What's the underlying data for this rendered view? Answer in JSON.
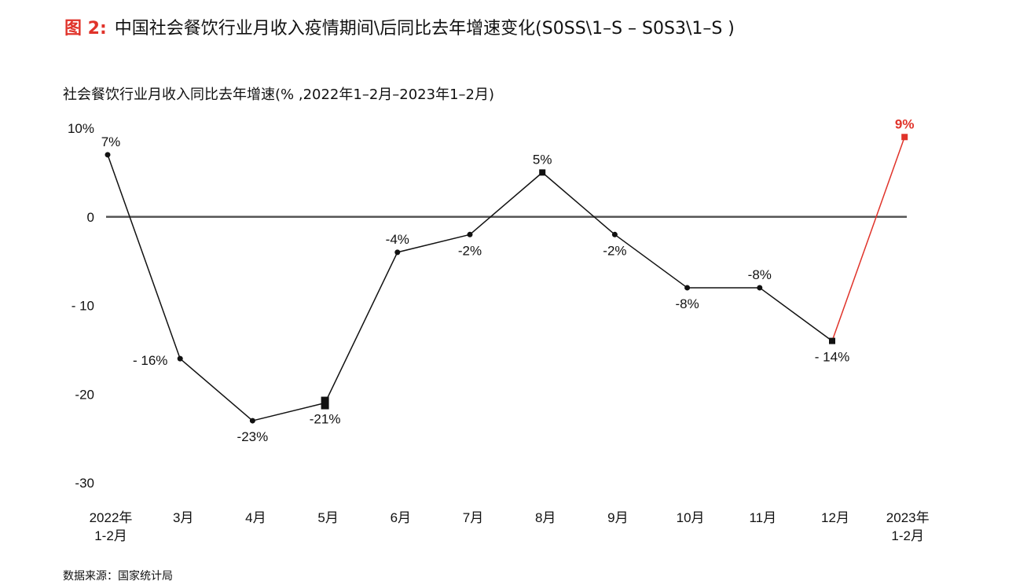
{
  "header": {
    "figure_label": "图 2:",
    "title": "中国社会餐饮行业月收入疫情期间\\后同比去年增速变化(S0SS\\1–S – S0S3\\1–S )"
  },
  "footer": {
    "source": "数据来源：国家统计局"
  },
  "colors": {
    "accent": "#e0332a",
    "line": "#111111",
    "zero_line": "#555555"
  },
  "chart_data": {
    "type": "line",
    "title": "社会餐饮行业月收入同比去年增速(% ,2022年1–2月–2023年1–2月)",
    "ylim": [
      -30,
      10
    ],
    "y_ticks": [
      {
        "value": 10,
        "label": "10%"
      },
      {
        "value": 0,
        "label": "0"
      },
      {
        "value": -10,
        "label": "- 10"
      },
      {
        "value": -20,
        "label": "-20"
      },
      {
        "value": -30,
        "label": "-30"
      }
    ],
    "categories": [
      [
        "2022年",
        "1-2月"
      ],
      [
        "3月"
      ],
      [
        "4月"
      ],
      [
        "5月"
      ],
      [
        "6月"
      ],
      [
        "7月"
      ],
      [
        "8月"
      ],
      [
        "9月"
      ],
      [
        "10月"
      ],
      [
        "11月"
      ],
      [
        "12月"
      ],
      [
        "2023年",
        "1-2月"
      ]
    ],
    "values": [
      7,
      -16,
      -23,
      -21,
      -4,
      -2,
      5,
      -2,
      -8,
      -8,
      -14,
      9
    ],
    "data_labels": [
      "7%",
      "- 16%",
      "-23%",
      "-21%",
      "-4%",
      "-2%",
      "5%",
      "-2%",
      "-8%",
      "-8%",
      "- 14%",
      "9%"
    ],
    "highlight_last": true,
    "zero_line": true,
    "grid": false
  }
}
